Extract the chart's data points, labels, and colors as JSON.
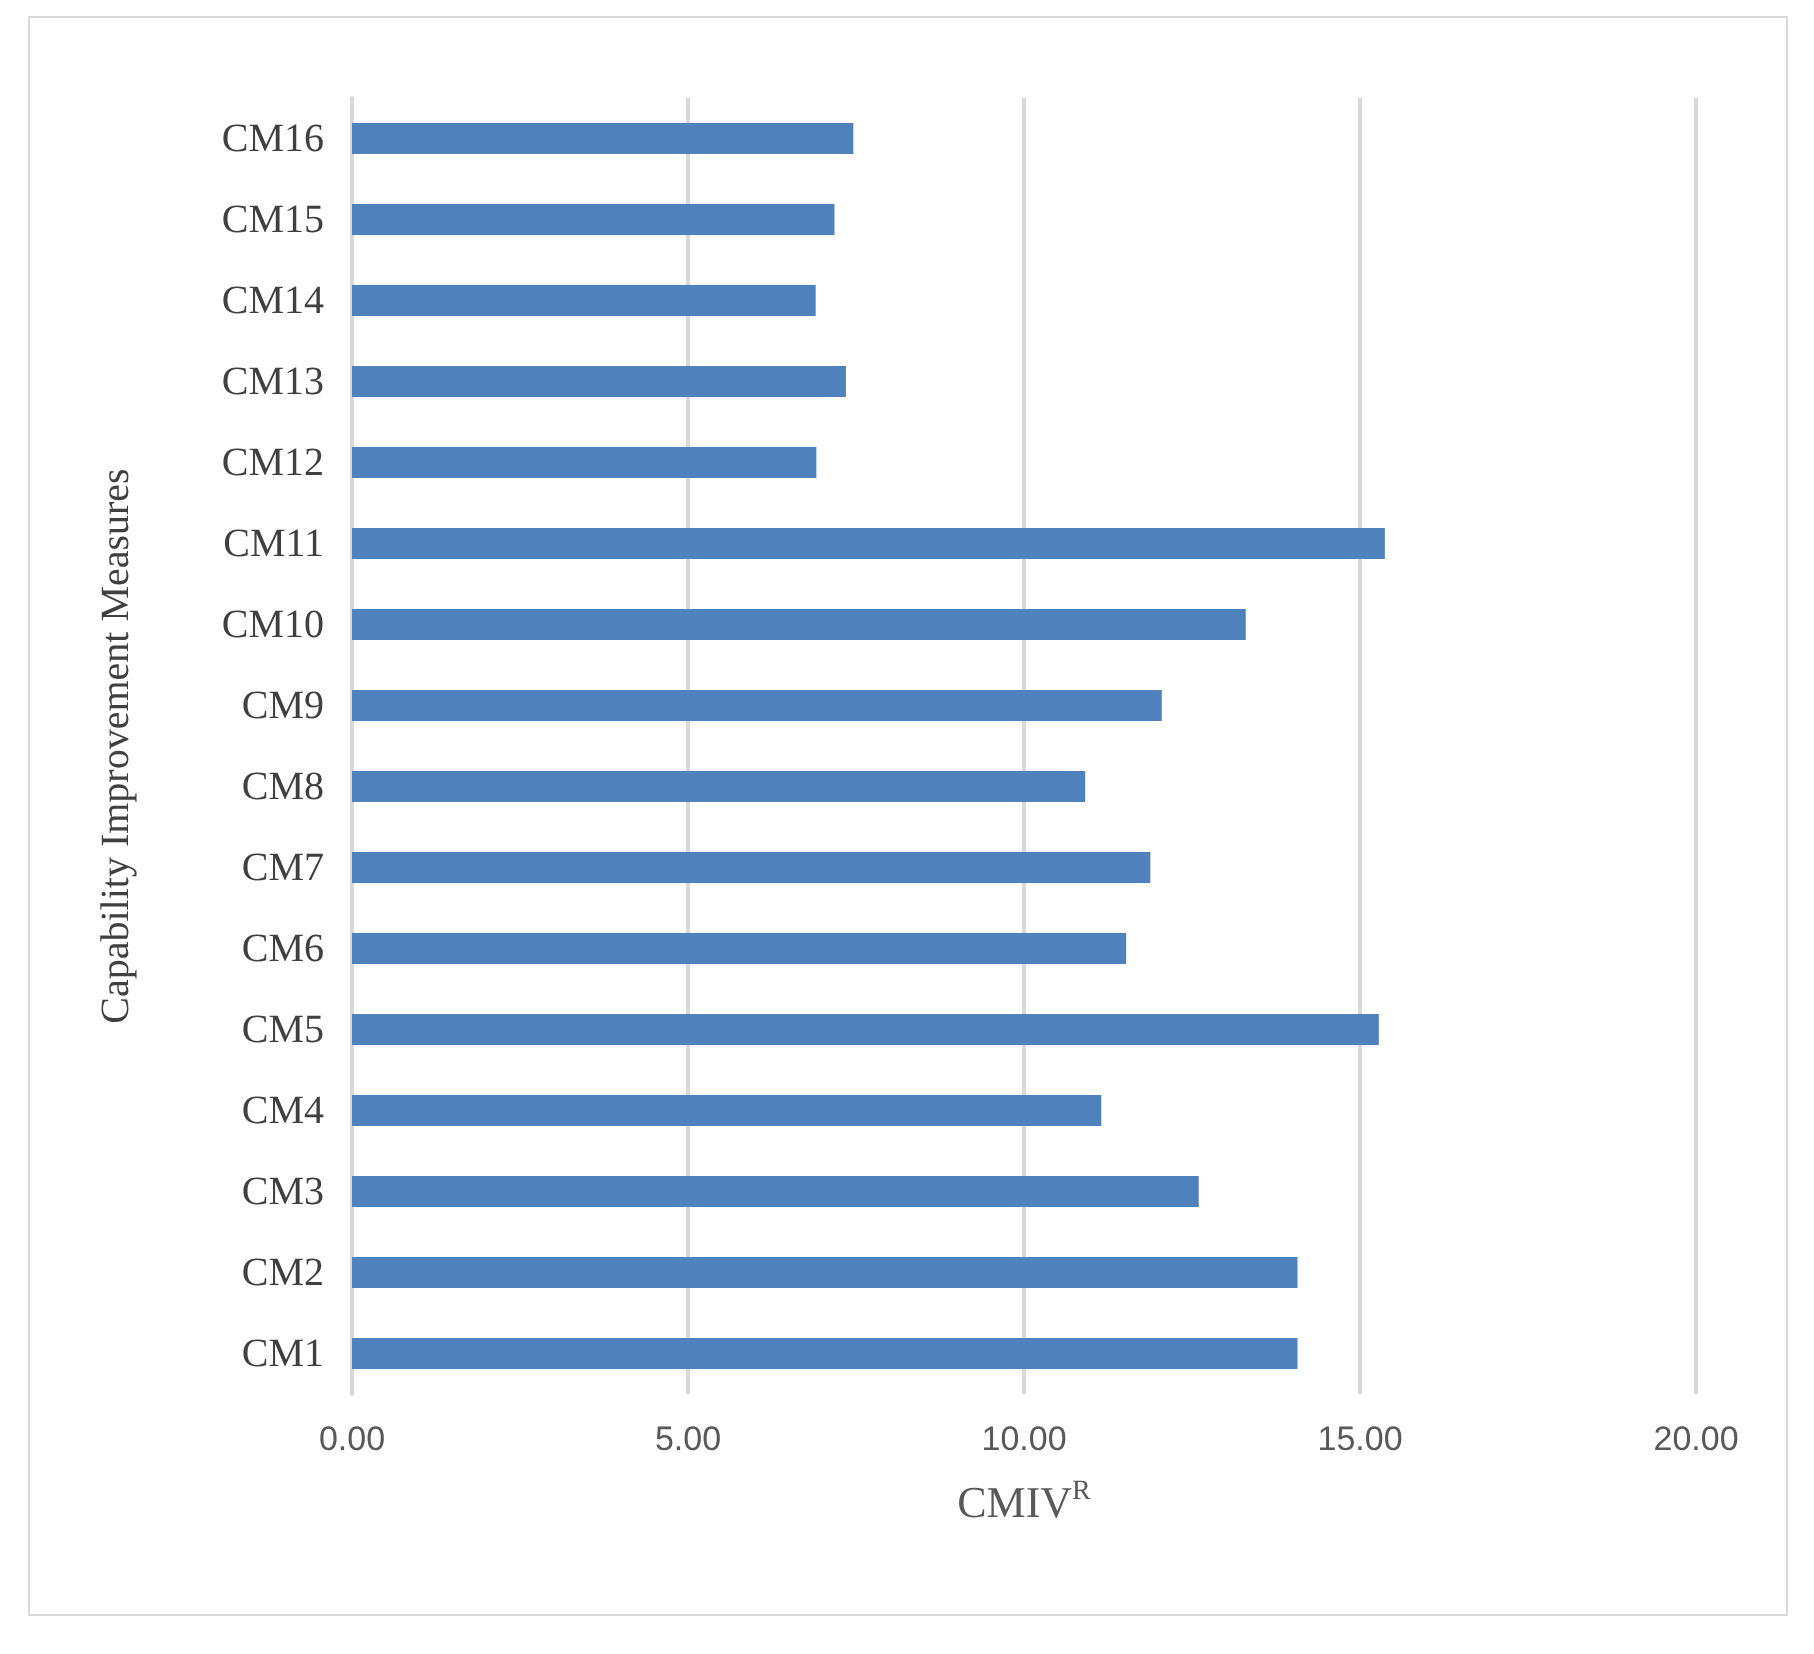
{
  "chart_data": {
    "type": "bar",
    "orientation": "horizontal",
    "xlabel": "CMIV$^{R}$",
    "ylabel": "Capability Improvement Measures",
    "categories": [
      "CM16",
      "CM15",
      "CM14",
      "CM13",
      "CM12",
      "CM11",
      "CM10",
      "CM9",
      "CM8",
      "CM7",
      "CM6",
      "CM5",
      "CM4",
      "CM3",
      "CM2",
      "CM1"
    ],
    "values": [
      7.46,
      7.18,
      6.9,
      7.35,
      6.91,
      15.37,
      13.3,
      12.05,
      10.91,
      11.88,
      11.52,
      15.28,
      11.15,
      12.6,
      14.07,
      14.07
    ],
    "color": "#4f81bd",
    "xlim": [
      0,
      20
    ],
    "xticks": [
      {
        "value": 0,
        "label": "0.00"
      },
      {
        "value": 5,
        "label": "5.00"
      },
      {
        "value": 10,
        "label": "10.00"
      },
      {
        "value": 15,
        "label": "15.00"
      },
      {
        "value": 20,
        "label": "20.00"
      }
    ],
    "grid": "x"
  }
}
